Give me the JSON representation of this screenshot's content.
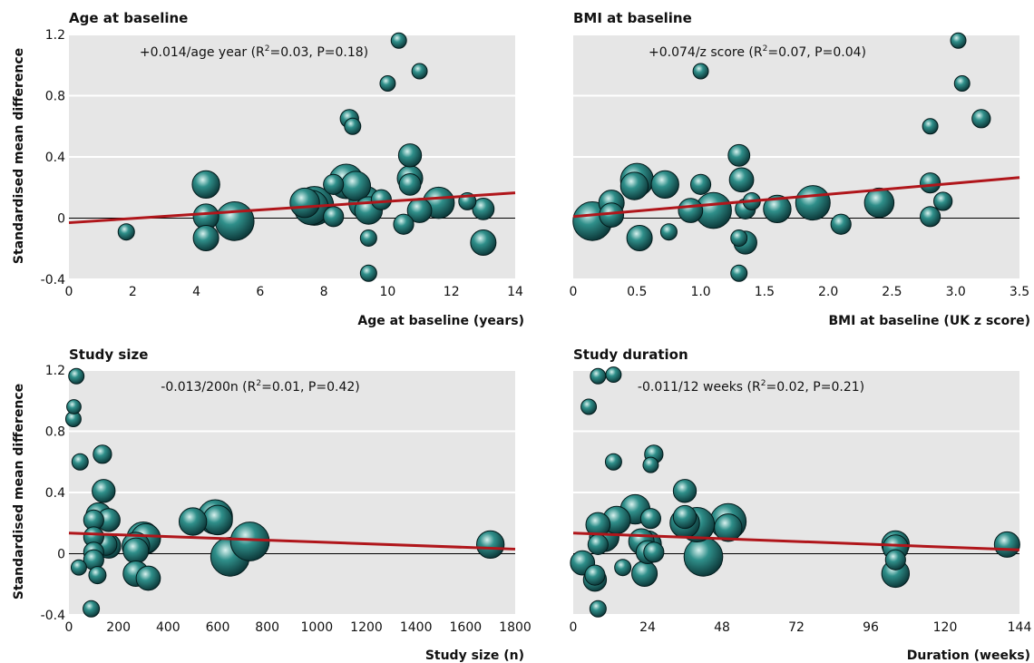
{
  "figure": {
    "ylabel": "Standardised mean difference"
  },
  "chart_data": [
    {
      "id": "age",
      "type": "scatter",
      "title": "Age at baseline",
      "xlabel": "Age at baseline (years)",
      "ylabel": "Standardised mean difference",
      "xlim": [
        0,
        14
      ],
      "ylim": [
        -0.4,
        1.2
      ],
      "xticks": [
        "0",
        "2",
        "4",
        "6",
        "8",
        "10",
        "12",
        "14"
      ],
      "yticks": [
        "-0.4",
        "0",
        "0.4",
        "0.8",
        "1.2"
      ],
      "annotation": {
        "pre": "+0.014/age year (R",
        "sup": "2",
        "post": "=0.03, P=0.18)"
      },
      "regression": {
        "x": [
          0,
          14
        ],
        "y": [
          -0.03,
          0.165
        ],
        "color": "#b0161b"
      },
      "points": [
        {
          "x": 1.8,
          "y": -0.09,
          "w": 1
        },
        {
          "x": 4.3,
          "y": 0.22,
          "w": 5
        },
        {
          "x": 4.3,
          "y": 0.01,
          "w": 4
        },
        {
          "x": 4.3,
          "y": -0.13,
          "w": 4
        },
        {
          "x": 5.2,
          "y": -0.02,
          "w": 12
        },
        {
          "x": 7.4,
          "y": 0.1,
          "w": 6
        },
        {
          "x": 7.6,
          "y": 0.07,
          "w": 9
        },
        {
          "x": 7.7,
          "y": 0.08,
          "w": 12
        },
        {
          "x": 8.3,
          "y": 0.01,
          "w": 2
        },
        {
          "x": 8.3,
          "y": 0.22,
          "w": 2
        },
        {
          "x": 8.7,
          "y": 0.24,
          "w": 9
        },
        {
          "x": 8.8,
          "y": 0.65,
          "w": 1.5
        },
        {
          "x": 8.9,
          "y": 0.6,
          "w": 1
        },
        {
          "x": 9.0,
          "y": 0.21,
          "w": 6
        },
        {
          "x": 9.3,
          "y": 0.1,
          "w": 8
        },
        {
          "x": 9.4,
          "y": 0.05,
          "w": 5
        },
        {
          "x": 9.4,
          "y": -0.13,
          "w": 1
        },
        {
          "x": 9.4,
          "y": -0.36,
          "w": 1
        },
        {
          "x": 9.8,
          "y": 0.12,
          "w": 2
        },
        {
          "x": 10.0,
          "y": 0.88,
          "w": 0.8
        },
        {
          "x": 10.35,
          "y": 1.16,
          "w": 0.8
        },
        {
          "x": 10.5,
          "y": -0.04,
          "w": 2
        },
        {
          "x": 10.7,
          "y": 0.41,
          "w": 3
        },
        {
          "x": 10.7,
          "y": 0.26,
          "w": 4
        },
        {
          "x": 10.7,
          "y": 0.22,
          "w": 2.5
        },
        {
          "x": 11.0,
          "y": 0.96,
          "w": 0.8
        },
        {
          "x": 11.0,
          "y": 0.05,
          "w": 3.5
        },
        {
          "x": 11.6,
          "y": 0.1,
          "w": 7
        },
        {
          "x": 12.5,
          "y": 0.11,
          "w": 1.2
        },
        {
          "x": 13.0,
          "y": 0.06,
          "w": 2.5
        },
        {
          "x": 13.0,
          "y": -0.16,
          "w": 4
        }
      ]
    },
    {
      "id": "bmi",
      "type": "scatter",
      "title": "BMI at baseline",
      "xlabel": "BMI at baseline (UK z score)",
      "ylabel": "",
      "xlim": [
        0,
        3.5
      ],
      "ylim": [
        -0.4,
        1.2
      ],
      "xticks": [
        "0",
        "0.5",
        "1.0",
        "1.5",
        "2.0",
        "2.5",
        "3.0",
        "3.5"
      ],
      "yticks": [],
      "annotation": {
        "pre": "+0.074/z score (R",
        "sup": "2",
        "post": "=0.07, P=0.04)"
      },
      "regression": {
        "x": [
          0,
          3.5
        ],
        "y": [
          0.01,
          0.265
        ],
        "color": "#b0161b"
      },
      "points": [
        {
          "x": 0.15,
          "y": -0.02,
          "w": 12
        },
        {
          "x": 0.3,
          "y": 0.1,
          "w": 4
        },
        {
          "x": 0.3,
          "y": 0.02,
          "w": 3.5
        },
        {
          "x": 0.5,
          "y": 0.25,
          "w": 8
        },
        {
          "x": 0.48,
          "y": 0.21,
          "w": 5
        },
        {
          "x": 0.52,
          "y": -0.13,
          "w": 4
        },
        {
          "x": 0.72,
          "y": 0.22,
          "w": 5
        },
        {
          "x": 0.75,
          "y": -0.09,
          "w": 1
        },
        {
          "x": 0.92,
          "y": 0.05,
          "w": 3.5
        },
        {
          "x": 1.0,
          "y": 0.96,
          "w": 0.8
        },
        {
          "x": 1.0,
          "y": 0.22,
          "w": 2
        },
        {
          "x": 1.1,
          "y": 0.05,
          "w": 10
        },
        {
          "x": 1.3,
          "y": 0.41,
          "w": 2.5
        },
        {
          "x": 1.32,
          "y": 0.25,
          "w": 3.5
        },
        {
          "x": 1.3,
          "y": -0.13,
          "w": 1
        },
        {
          "x": 1.35,
          "y": -0.16,
          "w": 3
        },
        {
          "x": 1.35,
          "y": 0.06,
          "w": 2
        },
        {
          "x": 1.3,
          "y": -0.36,
          "w": 1
        },
        {
          "x": 1.4,
          "y": 0.11,
          "w": 1.2
        },
        {
          "x": 1.6,
          "y": 0.06,
          "w": 5
        },
        {
          "x": 1.88,
          "y": 0.1,
          "w": 9
        },
        {
          "x": 2.1,
          "y": -0.04,
          "w": 2
        },
        {
          "x": 2.4,
          "y": 0.1,
          "w": 6
        },
        {
          "x": 2.8,
          "y": 0.6,
          "w": 0.8
        },
        {
          "x": 2.8,
          "y": 0.23,
          "w": 2
        },
        {
          "x": 2.8,
          "y": 0.01,
          "w": 2
        },
        {
          "x": 2.9,
          "y": 0.11,
          "w": 1.5
        },
        {
          "x": 3.02,
          "y": 1.16,
          "w": 0.8
        },
        {
          "x": 3.05,
          "y": 0.88,
          "w": 0.8
        },
        {
          "x": 3.2,
          "y": 0.65,
          "w": 1.5
        }
      ]
    },
    {
      "id": "size",
      "type": "scatter",
      "title": "Study size",
      "xlabel": "Study size (n)",
      "ylabel": "Standardised mean difference",
      "xlim": [
        0,
        1800
      ],
      "ylim": [
        -0.4,
        1.2
      ],
      "xticks": [
        "0",
        "200",
        "400",
        "600",
        "800",
        "1000",
        "1200",
        "1400",
        "1600",
        "1800"
      ],
      "yticks": [
        "-0.4",
        "0",
        "0.4",
        "0.8",
        "1.2"
      ],
      "annotation": {
        "pre": "-0.013/200n (R",
        "sup": "2",
        "post": "=0.01, P=0.42)"
      },
      "regression": {
        "x": [
          0,
          1800
        ],
        "y": [
          0.135,
          0.03
        ],
        "color": "#b0161b"
      },
      "points": [
        {
          "x": 30,
          "y": 1.16,
          "w": 0.8
        },
        {
          "x": 20,
          "y": 0.96,
          "w": 0.6
        },
        {
          "x": 18,
          "y": 0.88,
          "w": 0.8
        },
        {
          "x": 45,
          "y": 0.6,
          "w": 1
        },
        {
          "x": 135,
          "y": 0.65,
          "w": 1.5
        },
        {
          "x": 140,
          "y": 0.41,
          "w": 3
        },
        {
          "x": 120,
          "y": 0.25,
          "w": 4
        },
        {
          "x": 100,
          "y": 0.22,
          "w": 2
        },
        {
          "x": 160,
          "y": 0.22,
          "w": 3
        },
        {
          "x": 100,
          "y": 0.11,
          "w": 2
        },
        {
          "x": 100,
          "y": 0.01,
          "w": 2
        },
        {
          "x": 100,
          "y": -0.04,
          "w": 2
        },
        {
          "x": 150,
          "y": 0.06,
          "w": 2.5
        },
        {
          "x": 160,
          "y": 0.05,
          "w": 3.5
        },
        {
          "x": 115,
          "y": -0.14,
          "w": 1.2
        },
        {
          "x": 40,
          "y": -0.09,
          "w": 0.8
        },
        {
          "x": 90,
          "y": -0.36,
          "w": 1
        },
        {
          "x": 270,
          "y": 0.05,
          "w": 5
        },
        {
          "x": 270,
          "y": 0.02,
          "w": 4
        },
        {
          "x": 270,
          "y": -0.13,
          "w": 4
        },
        {
          "x": 300,
          "y": 0.1,
          "w": 8
        },
        {
          "x": 310,
          "y": 0.1,
          "w": 6
        },
        {
          "x": 320,
          "y": -0.16,
          "w": 3.5
        },
        {
          "x": 500,
          "y": 0.21,
          "w": 5
        },
        {
          "x": 590,
          "y": 0.24,
          "w": 9
        },
        {
          "x": 600,
          "y": 0.22,
          "w": 6
        },
        {
          "x": 650,
          "y": -0.02,
          "w": 12
        },
        {
          "x": 730,
          "y": 0.08,
          "w": 12
        },
        {
          "x": 1700,
          "y": 0.06,
          "w": 5
        }
      ]
    },
    {
      "id": "duration",
      "type": "scatter",
      "title": "Study duration",
      "xlabel": "Duration (weeks)",
      "ylabel": "",
      "xlim": [
        0,
        144
      ],
      "ylim": [
        -0.4,
        1.2
      ],
      "xticks": [
        "0",
        "24",
        "48",
        "72",
        "96",
        "120",
        "144"
      ],
      "yticks": [],
      "annotation": {
        "pre": "-0.011/12 weeks (R",
        "sup": "2",
        "post": "=0.02, P=0.21)"
      },
      "regression": {
        "x": [
          0,
          144
        ],
        "y": [
          0.135,
          0.025
        ],
        "color": "#b0161b"
      },
      "points": [
        {
          "x": 8,
          "y": 1.16,
          "w": 0.8
        },
        {
          "x": 13,
          "y": 1.17,
          "w": 0.8
        },
        {
          "x": 5,
          "y": 0.96,
          "w": 0.8
        },
        {
          "x": 13,
          "y": 0.6,
          "w": 1
        },
        {
          "x": 26,
          "y": 0.65,
          "w": 1.5
        },
        {
          "x": 25,
          "y": 0.58,
          "w": 0.8
        },
        {
          "x": 36,
          "y": 0.41,
          "w": 3
        },
        {
          "x": 20,
          "y": 0.29,
          "w": 6
        },
        {
          "x": 14,
          "y": 0.22,
          "w": 5
        },
        {
          "x": 25,
          "y": 0.23,
          "w": 2
        },
        {
          "x": 36,
          "y": 0.24,
          "w": 3
        },
        {
          "x": 36,
          "y": 0.2,
          "w": 6
        },
        {
          "x": 40,
          "y": 0.19,
          "w": 9
        },
        {
          "x": 50,
          "y": 0.21,
          "w": 10
        },
        {
          "x": 50,
          "y": 0.17,
          "w": 5
        },
        {
          "x": 8,
          "y": 0.19,
          "w": 3.5
        },
        {
          "x": 10,
          "y": 0.11,
          "w": 6
        },
        {
          "x": 8,
          "y": 0.06,
          "w": 2
        },
        {
          "x": 22,
          "y": 0.08,
          "w": 4
        },
        {
          "x": 24,
          "y": 0.06,
          "w": 5
        },
        {
          "x": 24,
          "y": 0.01,
          "w": 3
        },
        {
          "x": 26,
          "y": 0.01,
          "w": 2
        },
        {
          "x": 3,
          "y": -0.06,
          "w": 3.5
        },
        {
          "x": 7,
          "y": -0.14,
          "w": 2
        },
        {
          "x": 7,
          "y": -0.17,
          "w": 3
        },
        {
          "x": 16,
          "y": -0.09,
          "w": 1
        },
        {
          "x": 23,
          "y": -0.13,
          "w": 4
        },
        {
          "x": 42,
          "y": -0.02,
          "w": 12
        },
        {
          "x": 8,
          "y": -0.36,
          "w": 1
        },
        {
          "x": 104,
          "y": 0.06,
          "w": 5
        },
        {
          "x": 104,
          "y": 0.04,
          "w": 4
        },
        {
          "x": 104,
          "y": -0.04,
          "w": 2
        },
        {
          "x": 104,
          "y": -0.13,
          "w": 5
        },
        {
          "x": 140,
          "y": 0.06,
          "w": 4
        }
      ]
    }
  ]
}
